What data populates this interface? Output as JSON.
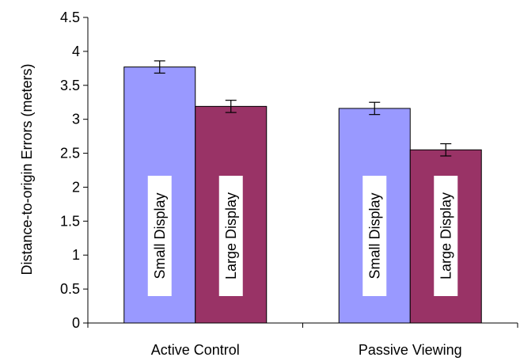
{
  "chart_data": {
    "type": "bar",
    "title": "",
    "xlabel": "",
    "ylabel": "Distance-to-origin Errors (meters)",
    "ylim": [
      0,
      4.5
    ],
    "yticks": [
      "0",
      "0.5",
      "1",
      "1.5",
      "2",
      "2.5",
      "3",
      "3.5",
      "4",
      "4.5"
    ],
    "ytick_values": [
      0,
      0.5,
      1,
      1.5,
      2,
      2.5,
      3,
      3.5,
      4,
      4.5
    ],
    "categories": [
      "Active Control",
      "Passive Viewing"
    ],
    "grid": false,
    "legend": "none",
    "series": [
      {
        "name": "Small Display",
        "color": "#9999ff",
        "values": [
          3.77,
          3.16
        ],
        "error": [
          0.09,
          0.09
        ]
      },
      {
        "name": "Large Display",
        "color": "#993366",
        "values": [
          3.19,
          2.55
        ],
        "error": [
          0.09,
          0.09
        ]
      }
    ]
  }
}
